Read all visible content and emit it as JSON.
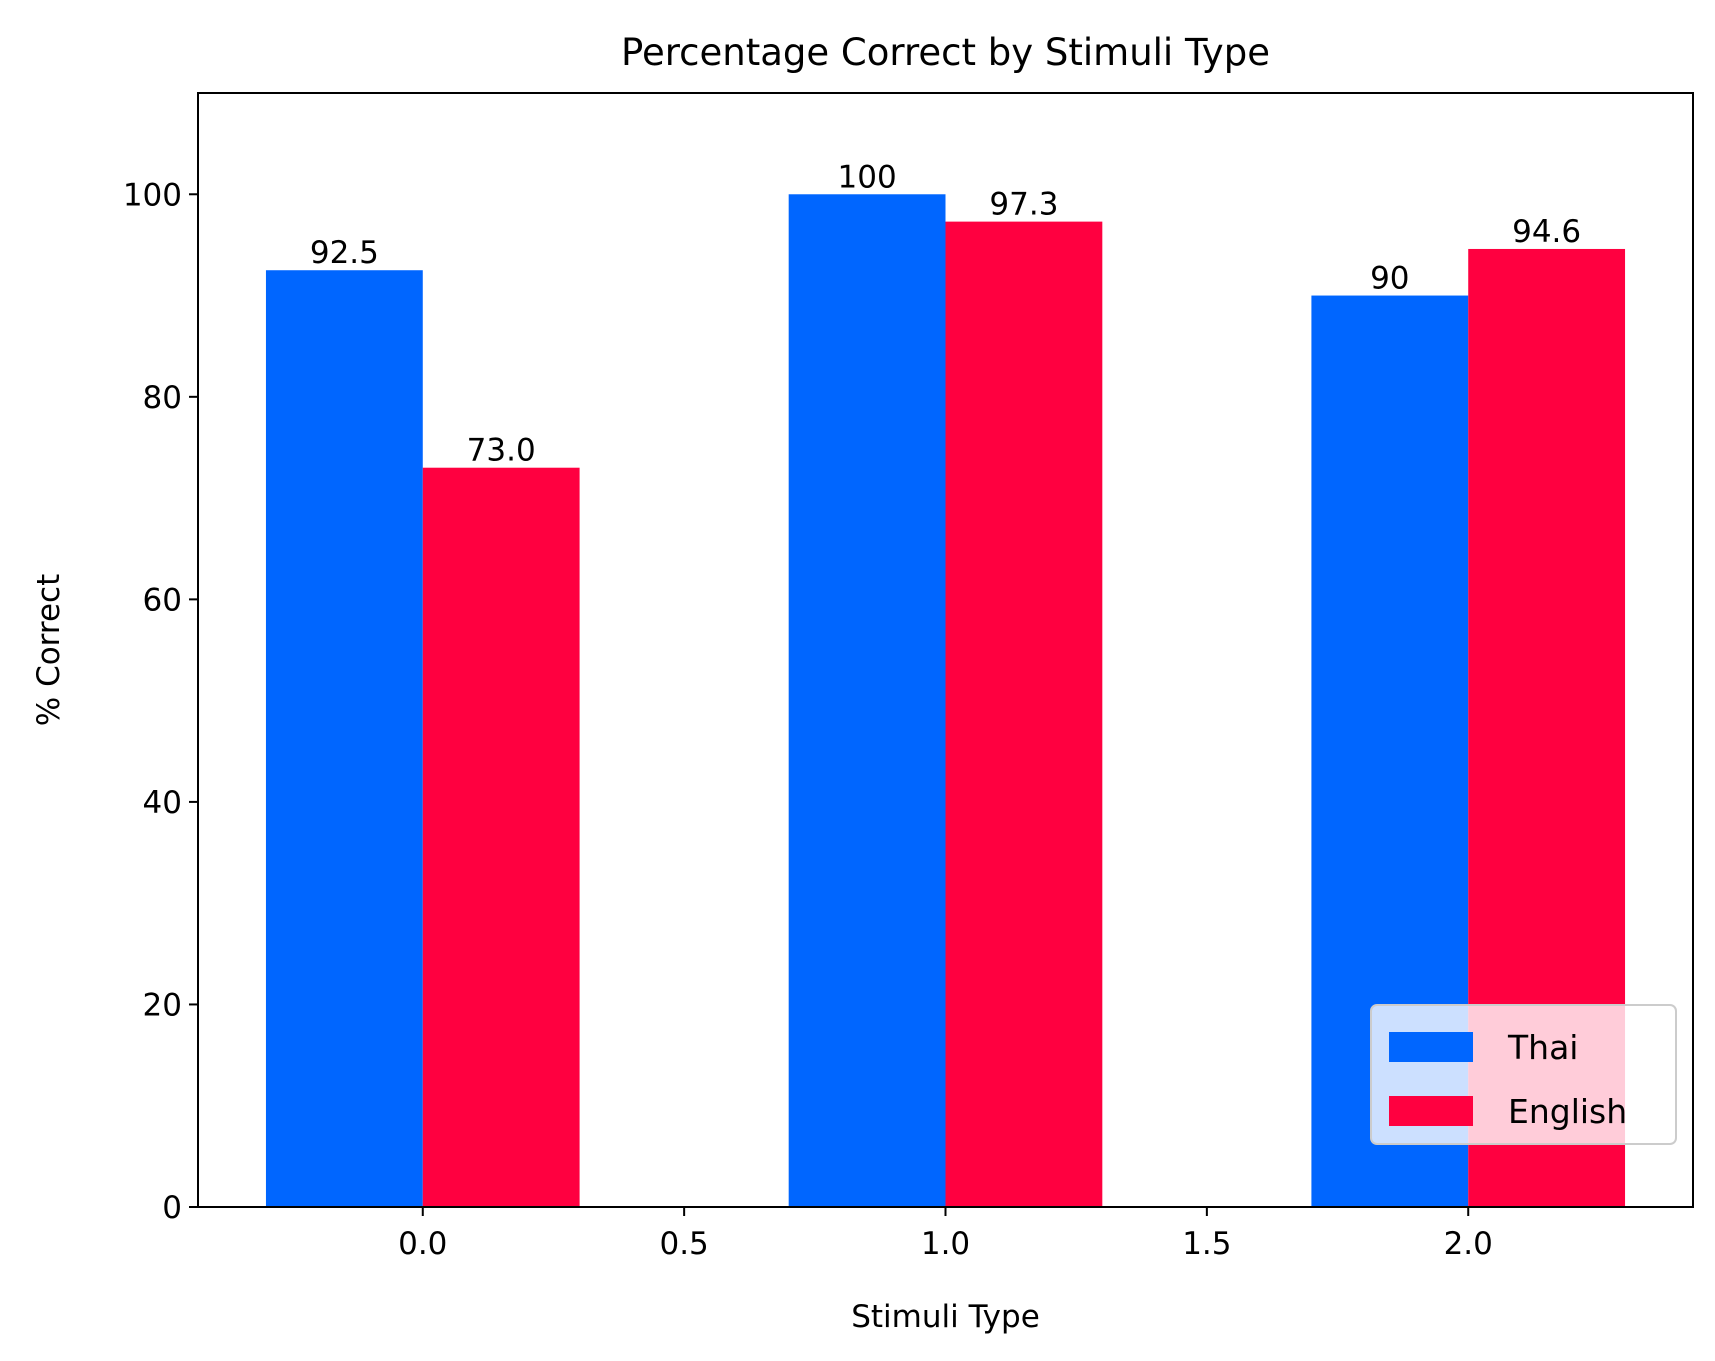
{
  "chart_data": {
    "type": "bar",
    "title": "Percentage Correct by Stimuli Type",
    "xlabel": "Stimuli Type",
    "ylabel": "% Correct",
    "x": [
      0,
      1,
      2
    ],
    "xlim": [
      -0.43,
      2.43
    ],
    "ylim": [
      0,
      110
    ],
    "xticks": [
      0.0,
      0.5,
      1.0,
      1.5,
      2.0
    ],
    "xtick_labels": [
      "0.0",
      "0.5",
      "1.0",
      "1.5",
      "2.0"
    ],
    "yticks": [
      0,
      20,
      40,
      60,
      80,
      100
    ],
    "ytick_labels": [
      "0",
      "20",
      "40",
      "60",
      "80",
      "100"
    ],
    "bar_width": 0.3,
    "grid": false,
    "legend_position": "lower-right",
    "series": [
      {
        "name": "Thai",
        "color": "#0066ff",
        "values": [
          92.5,
          100,
          90
        ],
        "labels": [
          "92.5",
          "100",
          "90"
        ]
      },
      {
        "name": "English",
        "color": "#ff0040",
        "values": [
          73.0,
          97.3,
          94.6
        ],
        "labels": [
          "73.0",
          "97.3",
          "94.6"
        ]
      }
    ]
  }
}
